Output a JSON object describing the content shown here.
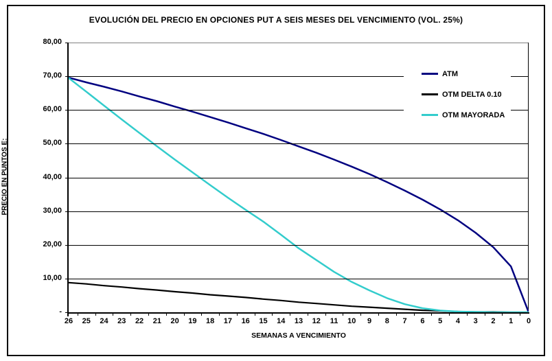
{
  "chart_data": {
    "type": "line",
    "title": "EVOLUCIÓN DEL PRECIO EN OPCIONES PUT A SEIS MESES DEL VENCIMIENTO (VOL. 25%)",
    "xlabel": "SEMANAS A VENCIMIENTO",
    "ylabel": "PRECIO EN PUNTOS E:",
    "ylim": [
      0,
      80
    ],
    "grid": true,
    "legend_position": "inside-top-right",
    "x": [
      26,
      25,
      24,
      23,
      22,
      21,
      20,
      19,
      18,
      17,
      16,
      15,
      14,
      13,
      12,
      11,
      10,
      9,
      8,
      7,
      6,
      5,
      4,
      3,
      2,
      1,
      0
    ],
    "x_tick_labels": [
      "26",
      "25",
      "24",
      "23",
      "22",
      "21",
      "20",
      "19",
      "18",
      "17",
      "16",
      "15",
      "14",
      "13",
      "12",
      "11",
      "10",
      "9",
      "8",
      "7",
      "6",
      "5",
      "4",
      "3",
      "2",
      "1",
      "0"
    ],
    "y_ticks": [
      {
        "value": 80,
        "label": "80,00"
      },
      {
        "value": 70,
        "label": "70,00"
      },
      {
        "value": 60,
        "label": "60,00"
      },
      {
        "value": 50,
        "label": "50,00"
      },
      {
        "value": 40,
        "label": "40,00"
      },
      {
        "value": 30,
        "label": "30,00"
      },
      {
        "value": 20,
        "label": "20,00"
      },
      {
        "value": 10,
        "label": "10,00"
      },
      {
        "value": 0,
        "label": "-"
      }
    ],
    "series": [
      {
        "name": "ATM",
        "color": "#000080",
        "values": [
          69.6,
          68.2,
          66.9,
          65.5,
          64.0,
          62.6,
          61.0,
          59.5,
          57.9,
          56.3,
          54.6,
          52.9,
          51.1,
          49.2,
          47.3,
          45.3,
          43.2,
          41.0,
          38.6,
          36.1,
          33.4,
          30.5,
          27.3,
          23.6,
          19.3,
          13.6,
          0.0
        ]
      },
      {
        "name": "OTM DELTA 0.10",
        "color": "#000000",
        "values": [
          8.8,
          8.4,
          7.9,
          7.5,
          7.0,
          6.6,
          6.1,
          5.7,
          5.2,
          4.8,
          4.4,
          3.9,
          3.5,
          3.0,
          2.6,
          2.2,
          1.8,
          1.5,
          1.2,
          0.9,
          0.6,
          0.4,
          0.2,
          0.1,
          0.1,
          0.0,
          0.0
        ]
      },
      {
        "name": "OTM MAYORADA",
        "color": "#33CCCC",
        "values": [
          69.5,
          65.4,
          61.3,
          57.2,
          53.2,
          49.2,
          45.3,
          41.5,
          37.7,
          34.0,
          30.4,
          26.9,
          23.0,
          19.0,
          15.5,
          12.0,
          9.0,
          6.5,
          4.2,
          2.4,
          1.2,
          0.5,
          0.2,
          0.1,
          0.0,
          0.0,
          0.0
        ]
      }
    ]
  }
}
